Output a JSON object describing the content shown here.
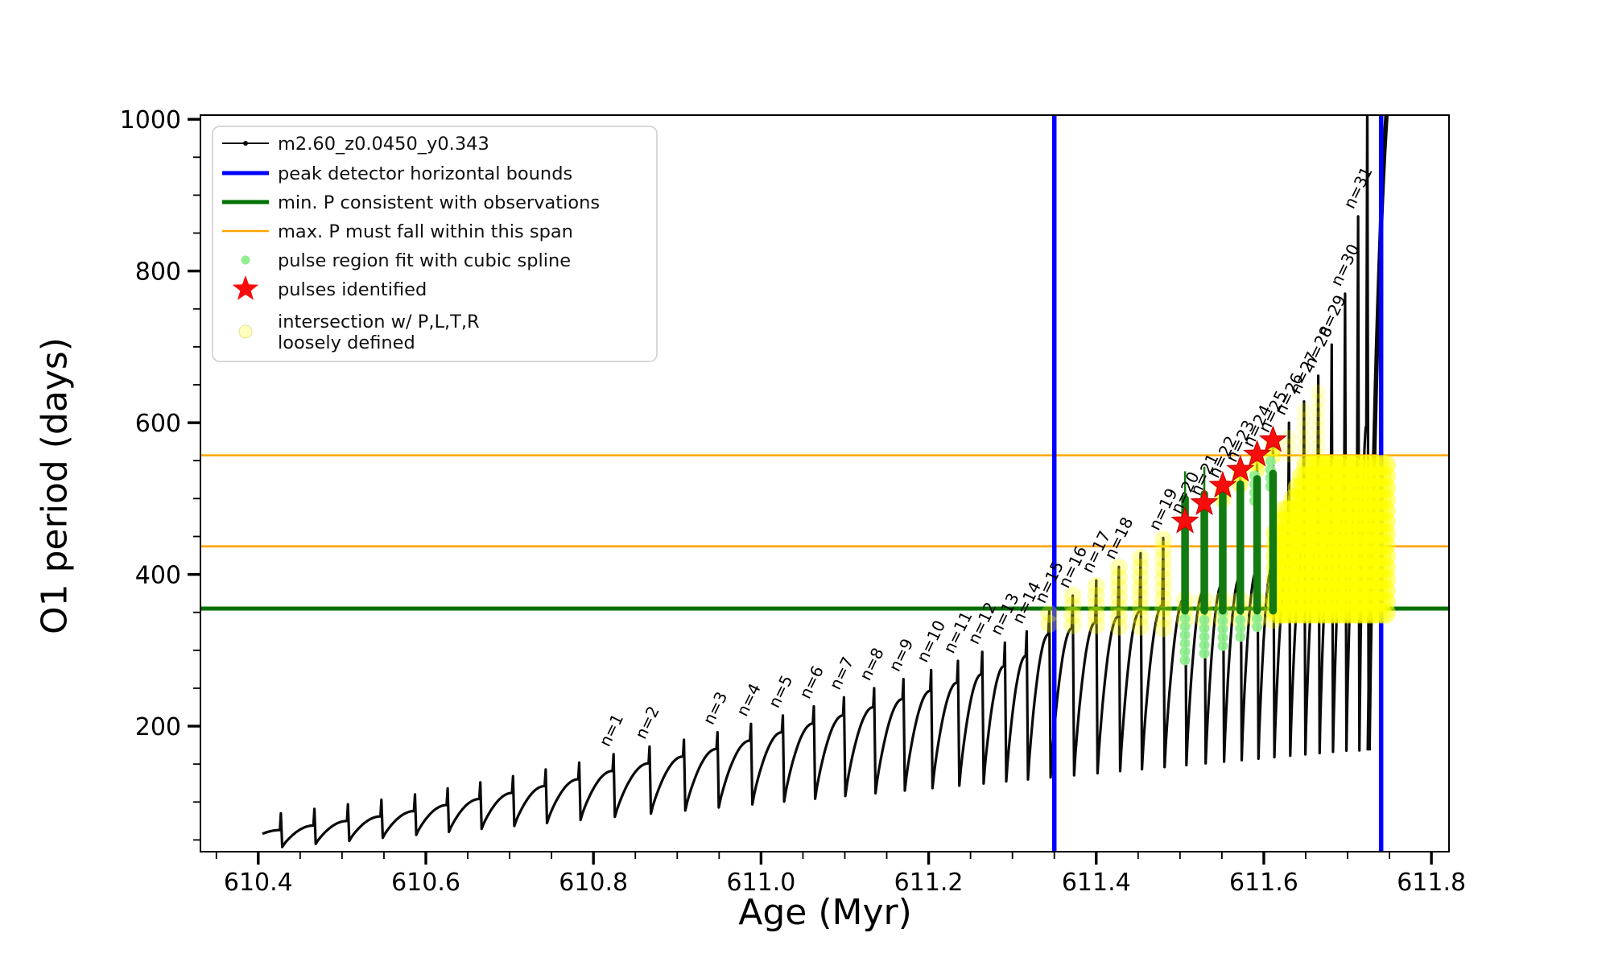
{
  "colors": {
    "series": "#0a0a0a",
    "peak_bounds": "#0000ff",
    "min_p": "#007000",
    "max_p": "#ffa500",
    "star": "#f80d0d",
    "spline": "#90ee90",
    "intersection": "#ffff00",
    "legend_border": "#cccccc"
  },
  "legend": {
    "entries": [
      {
        "marker": "line-dot",
        "color": "#0a0a0a",
        "label": "m2.60_z0.0450_y0.343"
      },
      {
        "marker": "thick-line",
        "color": "#0000ff",
        "label": "peak detector horizontal bounds"
      },
      {
        "marker": "thick-line",
        "color": "#007000",
        "label": "min. P consistent with observations"
      },
      {
        "marker": "line",
        "color": "#ffa500",
        "label": "max. P must fall within this span"
      },
      {
        "marker": "dot",
        "color": "#90ee90",
        "label": "pulse region fit with cubic spline"
      },
      {
        "marker": "star",
        "color": "#f80d0d",
        "label": "pulses identified"
      },
      {
        "marker": "faded-circle",
        "color": "#ffff00",
        "label": "intersection w/ P,L,T,R\nloosely defined"
      }
    ]
  },
  "chart_data": {
    "type": "line",
    "title": "",
    "xlabel": "Age (Myr)",
    "ylabel": "O1 period (days)",
    "xlim": [
      610.331,
      611.821
    ],
    "ylim": [
      34.5,
      1005.5
    ],
    "grid": false,
    "legend_position": "upper left",
    "xticks": {
      "major": [
        610.4,
        610.6,
        610.8,
        611.0,
        611.2,
        611.4,
        611.6,
        611.8
      ],
      "labels": [
        "610.4",
        "610.6",
        "610.8",
        "611.0",
        "611.2",
        "611.4",
        "611.6",
        "611.8"
      ],
      "minor_step": 0.05
    },
    "yticks": {
      "major": [
        200,
        400,
        600,
        800,
        1000
      ],
      "labels": [
        "200",
        "400",
        "600",
        "800",
        "1000"
      ],
      "minor_step": 50
    },
    "series_name": "m2.60_z0.0450_y0.343",
    "pulses": [
      [
        610.427,
        85,
        null
      ],
      [
        610.467,
        91,
        null
      ],
      [
        610.507,
        97,
        null
      ],
      [
        610.547,
        103,
        null
      ],
      [
        610.587,
        110,
        null
      ],
      [
        610.626,
        118,
        null
      ],
      [
        610.665,
        126,
        null
      ],
      [
        610.704,
        134,
        null
      ],
      [
        610.743,
        143,
        null
      ],
      [
        610.783,
        152,
        null
      ],
      [
        610.824,
        163,
        "n=1"
      ],
      [
        610.867,
        173,
        "n=2"
      ],
      [
        610.908,
        182,
        null
      ],
      [
        610.948,
        192,
        "n=3"
      ],
      [
        610.988,
        203,
        "n=4"
      ],
      [
        611.026,
        214,
        "n=5"
      ],
      [
        611.063,
        226,
        "n=6"
      ],
      [
        611.099,
        238,
        "n=7"
      ],
      [
        611.135,
        250,
        "n=8"
      ],
      [
        611.17,
        262,
        "n=9"
      ],
      [
        611.203,
        274,
        "n=10"
      ],
      [
        611.235,
        286,
        "n=11"
      ],
      [
        611.264,
        298,
        "n=12"
      ],
      [
        611.291,
        310,
        "n=13"
      ],
      [
        611.317,
        325,
        "n=14"
      ],
      [
        611.344,
        352,
        "n=15"
      ],
      [
        611.372,
        372,
        "n=16"
      ],
      [
        611.4,
        392,
        "n=17"
      ],
      [
        611.427,
        410,
        "n=18"
      ],
      [
        611.453,
        428,
        null
      ],
      [
        611.48,
        448,
        "n=19"
      ],
      [
        611.506,
        470,
        "n=20"
      ],
      [
        611.529,
        494,
        "n=21"
      ],
      [
        611.551,
        517,
        "n=22"
      ],
      [
        611.572,
        538,
        "n=23"
      ],
      [
        611.592,
        558,
        "n=24"
      ],
      [
        611.611,
        577,
        "n=25"
      ],
      [
        611.63,
        600,
        "n=26"
      ],
      [
        611.648,
        628,
        "n=27"
      ],
      [
        611.665,
        662,
        "n=28"
      ],
      [
        611.681,
        703,
        "n=29"
      ],
      [
        611.697,
        770,
        "n=30"
      ],
      [
        611.7125,
        872,
        "n=31"
      ],
      [
        611.7235,
        1040,
        null
      ]
    ],
    "dip_rule": {
      "base": 40,
      "ref_age": 610.42,
      "slope_per_myr": 100,
      "max": 168
    },
    "runaway": {
      "x0": 611.7251,
      "v0": 168,
      "x1": 611.7535,
      "v1": 1060
    },
    "annotations": {
      "peak_detector_bounds_x": [
        611.35,
        611.74
      ],
      "min_p_line_y": 355,
      "max_p_span_y": [
        437,
        557
      ]
    },
    "pulses_identified": [
      [
        611.506,
        470
      ],
      [
        611.529,
        494
      ],
      [
        611.551,
        517
      ],
      [
        611.572,
        538
      ],
      [
        611.592,
        558
      ],
      [
        611.611,
        577
      ]
    ],
    "green_bars": [
      [
        611.506,
        352,
        500
      ],
      [
        611.529,
        352,
        506
      ],
      [
        611.551,
        352,
        512
      ],
      [
        611.572,
        352,
        519
      ],
      [
        611.592,
        352,
        526
      ],
      [
        611.611,
        352,
        533
      ]
    ],
    "green_spikes": [
      [
        611.506,
        500,
        536
      ],
      [
        611.529,
        506,
        542
      ]
    ],
    "yellow_chains": [
      [
        611.344,
        335,
        358
      ],
      [
        611.372,
        333,
        372
      ],
      [
        611.4,
        333,
        392
      ],
      [
        611.427,
        331,
        410
      ],
      [
        611.453,
        331,
        428
      ],
      [
        611.48,
        329,
        448
      ],
      [
        611.506,
        340,
        368
      ],
      [
        611.529,
        340,
        368
      ],
      [
        611.551,
        340,
        368
      ],
      [
        611.572,
        340,
        368
      ],
      [
        611.592,
        340,
        368
      ],
      [
        611.611,
        340,
        368
      ]
    ],
    "yellow_tip_clusters": [
      [
        611.551,
        498,
        522
      ],
      [
        611.572,
        518,
        543
      ],
      [
        611.592,
        538,
        563
      ],
      [
        611.611,
        556,
        582
      ]
    ],
    "yellow_fringe": [
      [
        611.63,
        557,
        592
      ],
      [
        611.648,
        557,
        618
      ],
      [
        611.665,
        557,
        650
      ]
    ],
    "yellow_mass": {
      "x0": 611.615,
      "x1": 611.746,
      "dx": 0.0052,
      "bottom": 349,
      "ramp": [
        [
          611.615,
          462
        ],
        [
          611.657,
          557
        ],
        [
          611.746,
          557
        ]
      ],
      "r": 13,
      "step": 15,
      "opacity": 0.5
    },
    "spline_chains": [
      [
        611.506,
        287,
        350
      ],
      [
        611.529,
        296,
        350
      ],
      [
        611.551,
        306,
        350
      ],
      [
        611.572,
        318,
        350
      ],
      [
        611.592,
        331,
        350
      ]
    ],
    "spline_tip_clusters": [
      [
        611.589,
        497,
        540
      ],
      [
        611.608,
        516,
        556
      ]
    ]
  }
}
